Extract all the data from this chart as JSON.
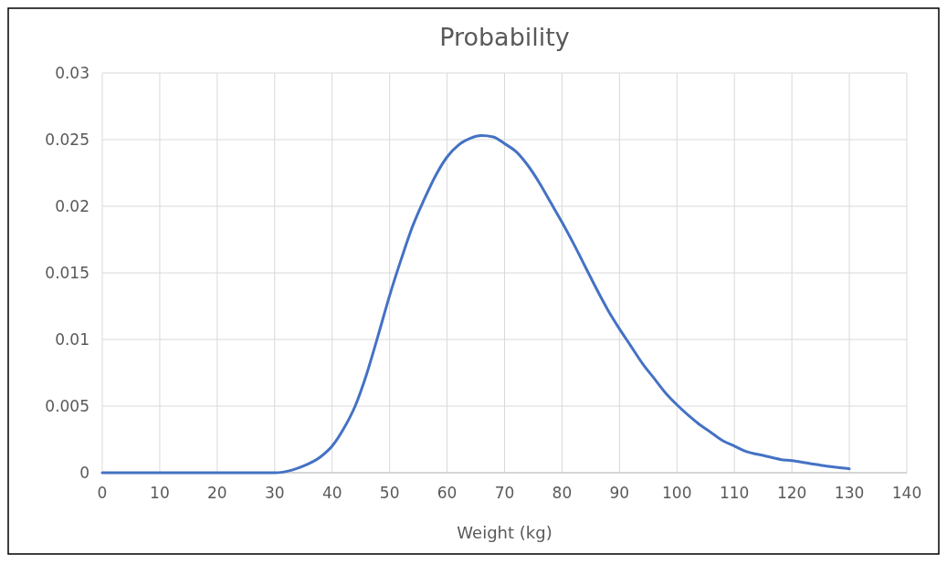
{
  "chart_data": {
    "type": "line",
    "title": "Probability",
    "xlabel": "Weight (kg)",
    "xlim": [
      0,
      140
    ],
    "xticks": [
      0,
      10,
      20,
      30,
      40,
      50,
      60,
      70,
      80,
      90,
      100,
      110,
      120,
      130,
      140
    ],
    "ylim": [
      0,
      0.03
    ],
    "yticks": [
      0,
      0.005,
      0.01,
      0.015,
      0.02,
      0.025,
      0.03
    ],
    "grid": true,
    "marker": "none",
    "line_style": "solid",
    "series": [
      {
        "color": "#4472c4",
        "x": [
          0,
          10,
          20,
          30,
          33,
          35,
          38,
          40,
          42,
          44,
          46,
          48,
          50,
          52,
          54,
          56,
          58,
          60,
          62,
          64,
          66,
          68,
          70,
          72,
          74,
          76,
          78,
          80,
          82,
          84,
          86,
          88,
          90,
          92,
          94,
          96,
          98,
          100,
          102,
          104,
          106,
          108,
          110,
          112,
          115,
          118,
          120,
          123,
          126,
          130
        ],
        "values": [
          0,
          0,
          0,
          0,
          0.0002,
          0.0005,
          0.0012,
          0.002,
          0.0033,
          0.005,
          0.0074,
          0.0103,
          0.0133,
          0.016,
          0.0185,
          0.0205,
          0.0223,
          0.0237,
          0.0246,
          0.0251,
          0.0253,
          0.0252,
          0.0247,
          0.0241,
          0.0231,
          0.0218,
          0.0203,
          0.0188,
          0.0172,
          0.0155,
          0.0138,
          0.0122,
          0.0108,
          0.0095,
          0.0082,
          0.0071,
          0.006,
          0.0051,
          0.0043,
          0.0036,
          0.003,
          0.0024,
          0.002,
          0.0016,
          0.0013,
          0.001,
          0.0009,
          0.0007,
          0.0005,
          0.0003
        ]
      }
    ]
  }
}
